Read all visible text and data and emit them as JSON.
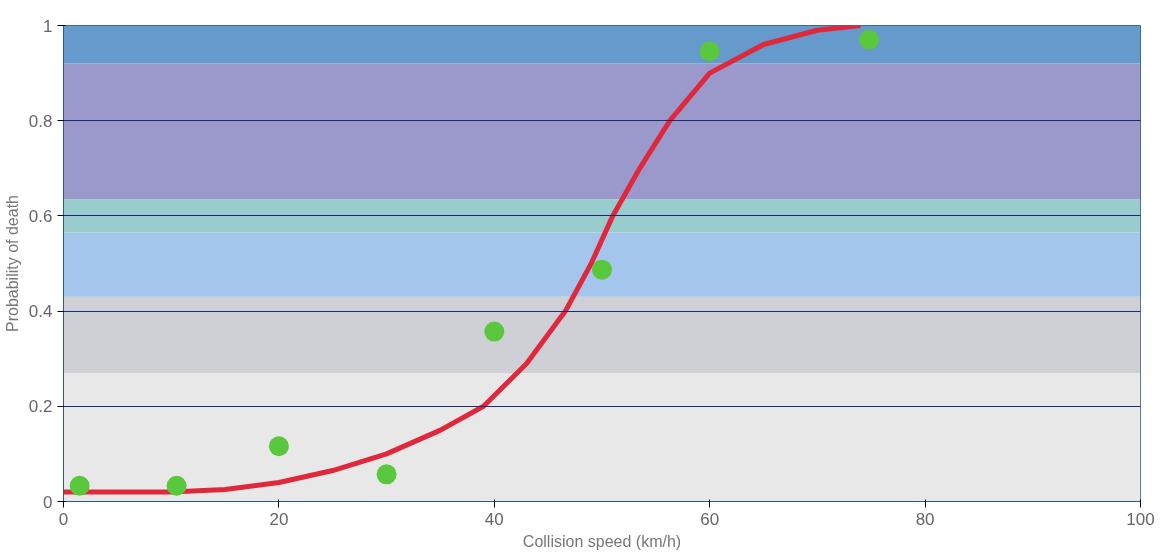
{
  "chart_data": {
    "type": "scatter",
    "xlabel": "Collision speed (km/h)",
    "ylabel": "Probability of death",
    "xlim": [
      0,
      100
    ],
    "ylim": [
      0,
      1
    ],
    "xticks": [
      0,
      20,
      40,
      60,
      80,
      100
    ],
    "yticks": [
      0,
      0.2,
      0.4,
      0.6,
      0.8,
      1
    ],
    "grid": "y",
    "series": [
      {
        "marker": "circle",
        "color": "#5ac83c",
        "x": [
          1.5,
          10.5,
          20,
          30,
          40,
          50,
          60,
          74.8
        ],
        "values": [
          0.033,
          0.033,
          0.116,
          0.057,
          0.357,
          0.487,
          0.946,
          0.97
        ]
      },
      {
        "type": "line",
        "color": "#e0283c",
        "line_style": "solid",
        "x": [
          0,
          10,
          15,
          20,
          25,
          30,
          35,
          39,
          43,
          46.6,
          49,
          51,
          53.5,
          56.3,
          60,
          65,
          70,
          74
        ],
        "values": [
          0.02,
          0.02,
          0.025,
          0.04,
          0.065,
          0.1,
          0.15,
          0.2,
          0.29,
          0.4,
          0.5,
          0.6,
          0.7,
          0.8,
          0.9,
          0.96,
          0.99,
          1.0
        ]
      }
    ],
    "bands": [
      {
        "axis": "y",
        "from": 0,
        "to": 0.27,
        "color": "#e8e8e8"
      },
      {
        "axis": "y",
        "from": 0.27,
        "to": 0.43,
        "color": "#cfcfd6"
      },
      {
        "axis": "y",
        "from": 0.43,
        "to": 0.565,
        "color": "#a4c6ec"
      },
      {
        "axis": "y",
        "from": 0.565,
        "to": 0.635,
        "color": "#99cccc"
      },
      {
        "axis": "y",
        "from": 0.635,
        "to": 0.92,
        "color": "#9b99cc"
      },
      {
        "axis": "y",
        "from": 0.92,
        "to": 1,
        "color": "#6699cc"
      }
    ]
  }
}
